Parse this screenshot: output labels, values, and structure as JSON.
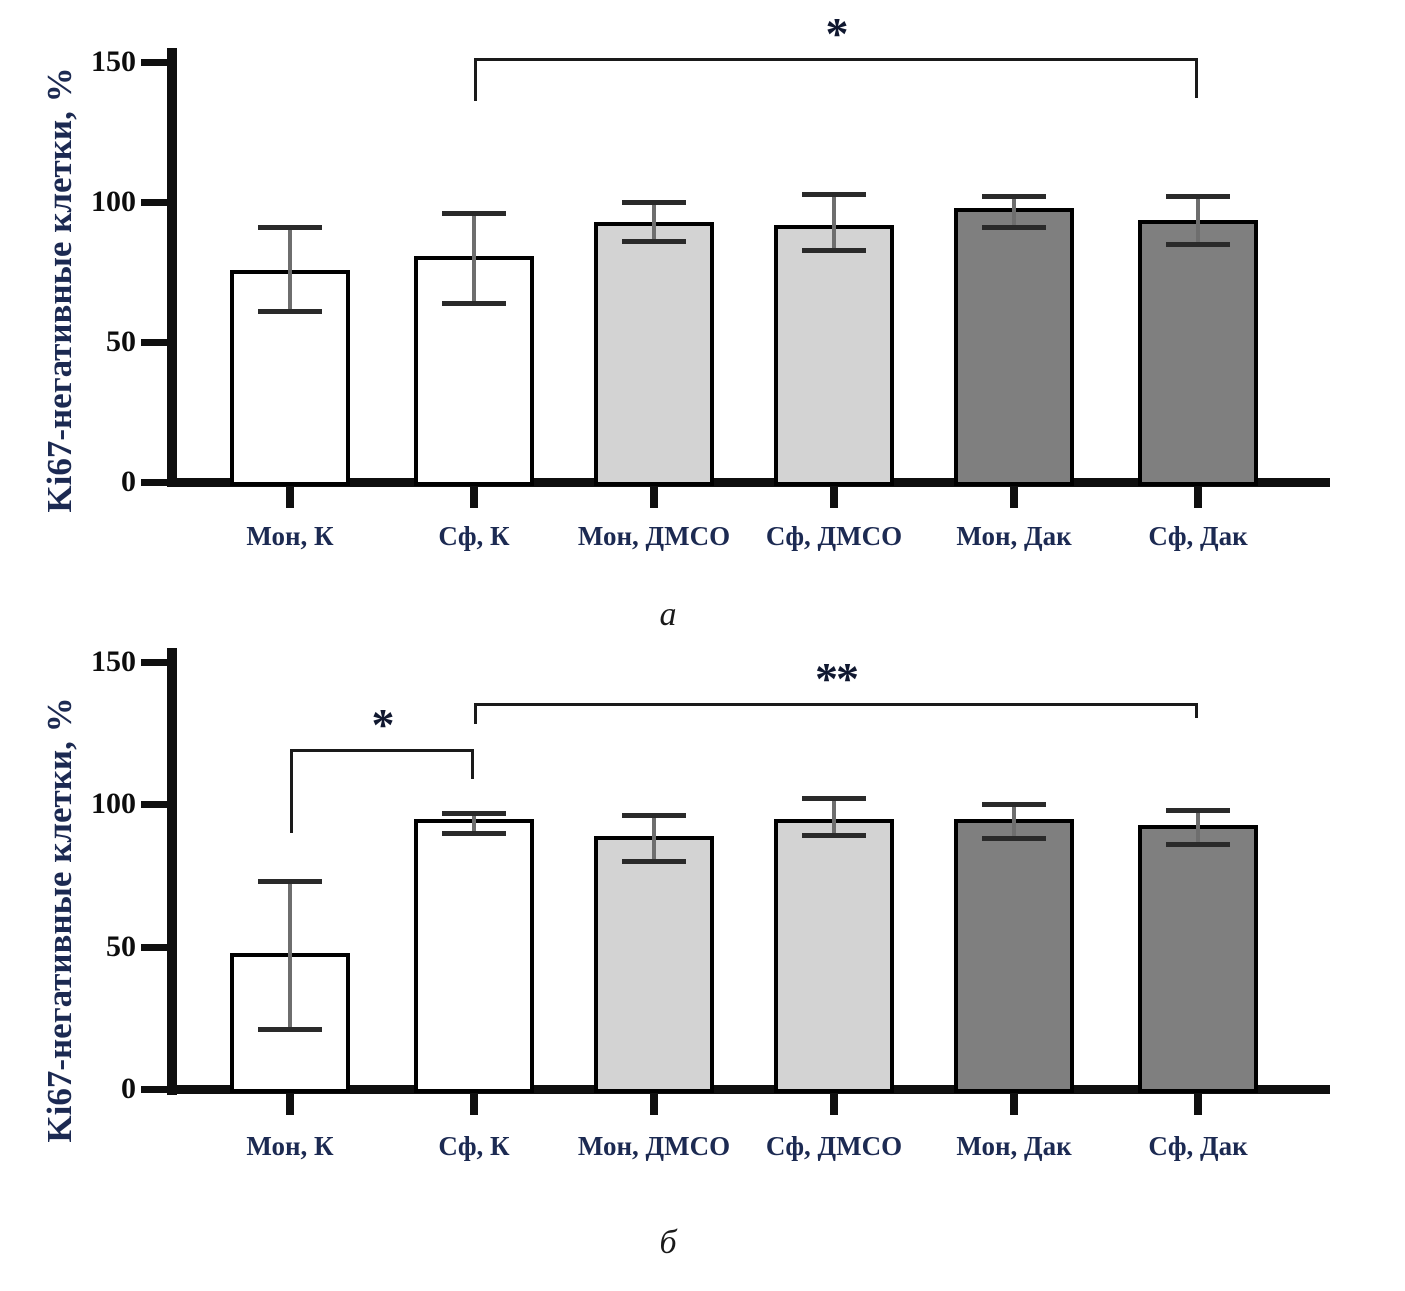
{
  "figure": {
    "bar_style_colors": {
      "white": "#ffffff",
      "light": "#d3d3d3",
      "dark": "#7f7f7f"
    },
    "colors": {
      "axis": "#0f0f0f",
      "category_label": "#1c2a52",
      "tick_label": "#0d0d0d",
      "error_stem": "#6e6e6e",
      "error_cap": "#2a2a2a",
      "bracket": "#1a1a1a",
      "significance_label": "#101830",
      "panel_label": "#1a1a1a",
      "y_axis_title": "#1c2a52"
    }
  },
  "chart_data": [
    {
      "type": "bar",
      "panel_label": "а",
      "ylabel": "Ki67-негативные клетки, %",
      "ylim": [
        0,
        150
      ],
      "yticks": [
        0,
        50,
        100,
        150
      ],
      "grid": false,
      "legend": null,
      "categories": [
        "Мон, К",
        "Сф, К",
        "Мон, ДМСО",
        "Сф, ДМСО",
        "Мон, Дак",
        "Сф, Дак"
      ],
      "values": [
        75,
        80,
        92,
        91,
        97,
        93
      ],
      "error_low": [
        61,
        64,
        86,
        83,
        91,
        85
      ],
      "error_high": [
        91,
        96,
        100,
        103,
        102,
        102
      ],
      "bar_styles": [
        "white",
        "white",
        "light",
        "light",
        "dark",
        "dark"
      ],
      "significance": [
        {
          "label": "*",
          "from": 1,
          "to": 5,
          "y": 151,
          "leg_left_to": 136,
          "leg_right_to": 137
        }
      ]
    },
    {
      "type": "bar",
      "panel_label": "б",
      "ylabel": "Ki67-негативные клетки, %",
      "ylim": [
        0,
        150
      ],
      "yticks": [
        0,
        50,
        100,
        150
      ],
      "grid": false,
      "legend": null,
      "categories": [
        "Мон, К",
        "Сф, К",
        "Мон, ДМСО",
        "Сф, ДМСО",
        "Мон, Дак",
        "Сф, Дак"
      ],
      "values": [
        47,
        94,
        88,
        94,
        94,
        92
      ],
      "error_low": [
        21,
        90,
        80,
        89,
        88,
        86
      ],
      "error_high": [
        73,
        97,
        96,
        102,
        100,
        98
      ],
      "bar_styles": [
        "white",
        "white",
        "light",
        "light",
        "dark",
        "dark"
      ],
      "significance": [
        {
          "label": "*",
          "from": 0,
          "to": 1,
          "y": 119,
          "leg_left_to": 90,
          "leg_right_to": 109
        },
        {
          "label": "**",
          "from": 1,
          "to": 5,
          "y": 135,
          "leg_left_to": 128,
          "leg_right_to": 130
        }
      ]
    }
  ]
}
